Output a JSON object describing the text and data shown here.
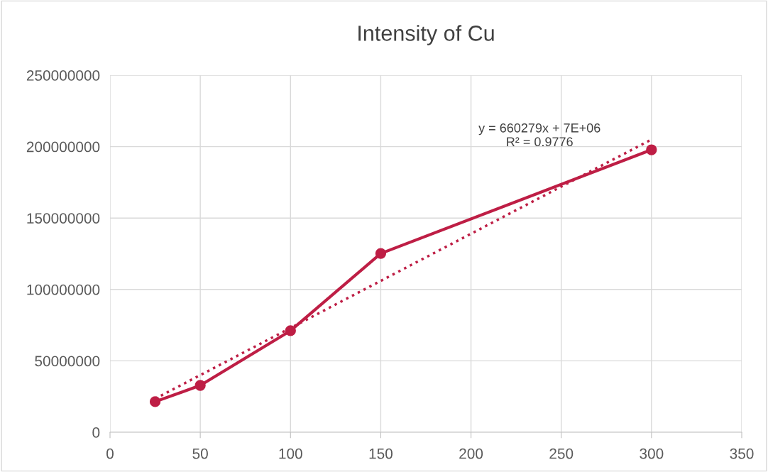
{
  "chart_data": {
    "type": "line",
    "title": "Intensity of Cu",
    "x": [
      25,
      50,
      100,
      150,
      300
    ],
    "series": [
      {
        "color": "#be1e45",
        "values": [
          21400000,
          32800000,
          71100000,
          125200000,
          197800000
        ],
        "marker": "circle",
        "line_style": "solid"
      },
      {
        "type": "line",
        "x": [
          25,
          300
        ],
        "color": "#be1e45",
        "values": [
          23500000,
          205000000
        ],
        "marker": "none",
        "line_style": "dotted"
      }
    ],
    "xlim": [
      0,
      350
    ],
    "xticks": [
      0,
      50,
      100,
      150,
      200,
      250,
      300,
      350
    ],
    "ylim": [
      0,
      250000000
    ],
    "yticks": [
      0,
      50000000,
      100000000,
      150000000,
      200000000,
      250000000
    ],
    "grid": true,
    "legend": false,
    "annotations": [
      "y = 660279x + 7E+06\nR² = 0.9776"
    ]
  }
}
